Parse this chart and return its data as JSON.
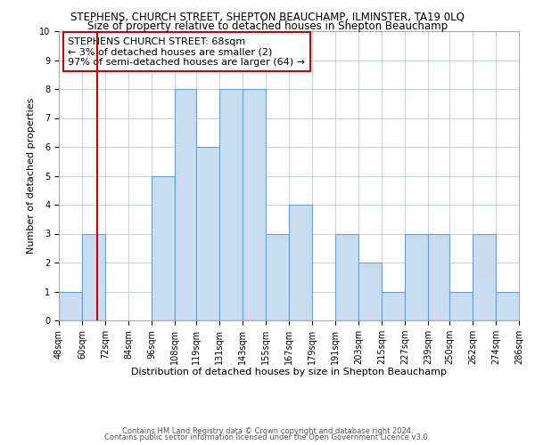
{
  "title_line1": "STEPHENS, CHURCH STREET, SHEPTON BEAUCHAMP, ILMINSTER, TA19 0LQ",
  "title_line2": "Size of property relative to detached houses in Shepton Beauchamp",
  "xlabel": "Distribution of detached houses by size in Shepton Beauchamp",
  "ylabel": "Number of detached properties",
  "bin_edges": [
    48,
    60,
    72,
    84,
    96,
    108,
    119,
    131,
    143,
    155,
    167,
    179,
    191,
    203,
    215,
    227,
    239,
    250,
    262,
    274,
    286
  ],
  "bar_heights": [
    1,
    3,
    0,
    0,
    5,
    8,
    6,
    8,
    8,
    3,
    4,
    0,
    3,
    2,
    1,
    3,
    3,
    1,
    3,
    1
  ],
  "bar_color": "#c9ddf0",
  "bar_edgecolor": "#6b9fd4",
  "grid_color": "#c8d0d8",
  "property_line_x": 68,
  "property_line_color": "#cc0000",
  "annotation_text_line1": "STEPHENS CHURCH STREET: 68sqm",
  "annotation_text_line2": "← 3% of detached houses are smaller (2)",
  "annotation_text_line3": "97% of semi-detached houses are larger (64) →",
  "annotation_fontsize": 8,
  "annotation_box_edgecolor": "#cc0000",
  "xlim": [
    48,
    286
  ],
  "ylim": [
    0,
    10
  ],
  "yticks": [
    0,
    1,
    2,
    3,
    4,
    5,
    6,
    7,
    8,
    9,
    10
  ],
  "xtick_labels": [
    "48sqm",
    "60sqm",
    "72sqm",
    "84sqm",
    "96sqm",
    "108sqm",
    "119sqm",
    "131sqm",
    "143sqm",
    "155sqm",
    "167sqm",
    "179sqm",
    "191sqm",
    "203sqm",
    "215sqm",
    "227sqm",
    "239sqm",
    "250sqm",
    "262sqm",
    "274sqm",
    "286sqm"
  ],
  "footnote1": "Contains HM Land Registry data © Crown copyright and database right 2024.",
  "footnote2": "Contains public sector information licensed under the Open Government Licence v3.0.",
  "title_fontsize": 8.5,
  "subtitle_fontsize": 8.5,
  "axis_label_fontsize": 8,
  "tick_fontsize": 7,
  "footnote_fontsize": 6
}
